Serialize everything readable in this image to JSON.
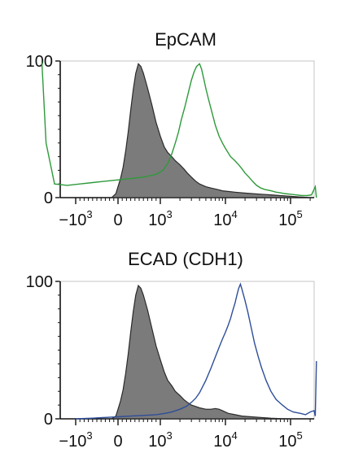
{
  "chart_data": [
    {
      "type": "area",
      "title": "EpCAM",
      "xlabel": "",
      "ylabel": "",
      "ylim": [
        0,
        100
      ],
      "x_scale": "biexponential",
      "xlim": [
        -1800,
        250000
      ],
      "y_ticks": [
        "0",
        "100"
      ],
      "x_ticks": [
        {
          "value": -1000,
          "base": "−10",
          "exp": "3"
        },
        {
          "value": 0,
          "base": "0",
          "exp": ""
        },
        {
          "value": 1000,
          "base": "10",
          "exp": "3"
        },
        {
          "value": 10000,
          "base": "10",
          "exp": "4"
        },
        {
          "value": 100000,
          "base": "10",
          "exp": "5"
        }
      ],
      "grid": false,
      "series": [
        {
          "role": "control-filled",
          "color": "#7b7b7b",
          "x": [
            -150,
            -50,
            0,
            60,
            120,
            180,
            240,
            300,
            360,
            420,
            480,
            540,
            600,
            700,
            800,
            900,
            1000,
            1150,
            1300,
            1500,
            1700,
            2000,
            2300,
            2600,
            3000,
            3500,
            4000,
            5000,
            6000,
            7500,
            9000,
            11000,
            14000,
            18000,
            25000,
            35000,
            50000,
            70000,
            100000,
            140000,
            200000
          ],
          "y": [
            0,
            3,
            8,
            14,
            22,
            34,
            48,
            64,
            79,
            91,
            98,
            96,
            91,
            80,
            68,
            55,
            45,
            37,
            33,
            30,
            27,
            24,
            21,
            18,
            15,
            12,
            10,
            8,
            7,
            6,
            5,
            4.5,
            4,
            3.5,
            3,
            2.5,
            2,
            1.5,
            1,
            0.5,
            0
          ]
        },
        {
          "role": "sample-line",
          "color": "#2e9a3a",
          "x": [
            -1800,
            -1700,
            -1500,
            -1200,
            -900,
            -600,
            -300,
            0,
            300,
            600,
            900,
            1100,
            1300,
            1500,
            1700,
            1900,
            2100,
            2400,
            2700,
            3000,
            3300,
            3600,
            4000,
            4300,
            4600,
            5000,
            5500,
            6000,
            7000,
            8000,
            9000,
            10000,
            12000,
            14000,
            16000,
            18000,
            20000,
            23000,
            26000,
            30000,
            35000,
            40000,
            50000,
            60000,
            70000,
            80000,
            100000,
            120000,
            150000,
            180000,
            210000,
            240000,
            250000
          ],
          "y": [
            100,
            40,
            10,
            9,
            10,
            11,
            12,
            13,
            14,
            15,
            17,
            20,
            25,
            32,
            40,
            48,
            57,
            67,
            77,
            86,
            92,
            96,
            98,
            94,
            88,
            80,
            72,
            65,
            53,
            45,
            40,
            36,
            30,
            27,
            24,
            21,
            18,
            15,
            12,
            9,
            7,
            6,
            5,
            4,
            3.5,
            3,
            2.5,
            2,
            1.5,
            1.5,
            2,
            8,
            0
          ]
        }
      ]
    },
    {
      "type": "area",
      "title": "ECAD (CDH1)",
      "xlabel": "",
      "ylabel": "",
      "ylim": [
        0,
        100
      ],
      "x_scale": "biexponential",
      "xlim": [
        -1800,
        250000
      ],
      "y_ticks": [
        "0",
        "100"
      ],
      "x_ticks": [
        {
          "value": -1000,
          "base": "−10",
          "exp": "3"
        },
        {
          "value": 0,
          "base": "0",
          "exp": ""
        },
        {
          "value": 1000,
          "base": "10",
          "exp": "3"
        },
        {
          "value": 10000,
          "base": "10",
          "exp": "4"
        },
        {
          "value": 100000,
          "base": "10",
          "exp": "5"
        }
      ],
      "grid": false,
      "series": [
        {
          "role": "control-filled",
          "color": "#7b7b7b",
          "x": [
            -150,
            -50,
            0,
            60,
            120,
            180,
            240,
            300,
            360,
            420,
            480,
            540,
            600,
            700,
            800,
            900,
            1000,
            1150,
            1300,
            1500,
            1700,
            2000,
            2300,
            2600,
            3000,
            3500,
            4000,
            5000,
            6000,
            7000,
            8000,
            9000,
            11000,
            14000,
            18000,
            25000,
            35000,
            50000,
            70000,
            100000
          ],
          "y": [
            0,
            2,
            7,
            13,
            21,
            33,
            47,
            63,
            78,
            90,
            97,
            95,
            90,
            79,
            66,
            53,
            43,
            34,
            28,
            24,
            20,
            17,
            14,
            12,
            10,
            9,
            8,
            7,
            7,
            7.5,
            7,
            6,
            4,
            3,
            2,
            1.5,
            1,
            0.5,
            0.2,
            0
          ]
        },
        {
          "role": "sample-line",
          "color": "#2e4e98",
          "x": [
            -1000,
            -600,
            -300,
            0,
            300,
            600,
            900,
            1200,
            1500,
            2000,
            2500,
            3000,
            3500,
            4000,
            5000,
            6000,
            7000,
            8000,
            9000,
            10000,
            11000,
            12000,
            13000,
            14000,
            15000,
            16000,
            17000,
            18000,
            20000,
            22000,
            25000,
            28000,
            32000,
            36000,
            42000,
            50000,
            60000,
            75000,
            90000,
            110000,
            140000,
            170000,
            200000,
            230000,
            240000,
            250000
          ],
          "y": [
            0,
            0.5,
            1,
            1.5,
            2,
            2.5,
            3,
            4,
            5,
            7,
            9,
            12,
            15,
            19,
            28,
            37,
            45,
            52,
            58,
            63,
            68,
            73,
            79,
            84,
            90,
            95,
            98,
            94,
            86,
            78,
            66,
            55,
            45,
            37,
            28,
            20,
            14,
            10,
            7,
            5,
            4,
            3,
            5,
            6,
            2,
            42
          ]
        }
      ]
    }
  ]
}
